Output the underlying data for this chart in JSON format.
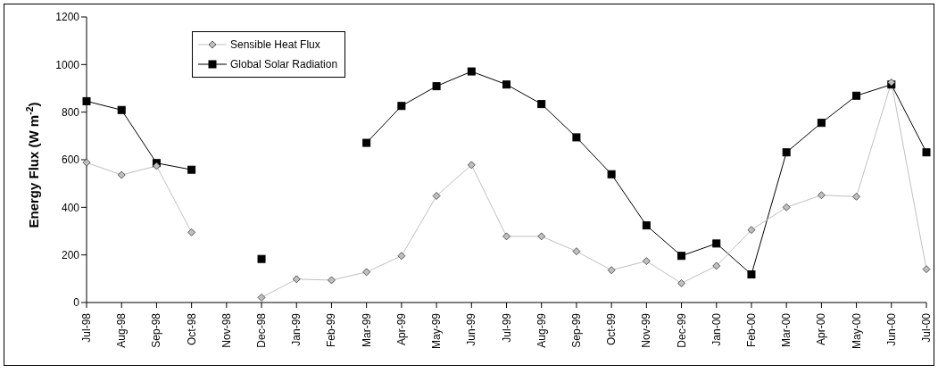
{
  "chart_data": {
    "type": "line",
    "ylabel": "Energy Flux (W m$^{-2}$)",
    "categories": [
      "Jul-98",
      "Aug-98",
      "Sep-98",
      "Oct-98",
      "Nov-98",
      "Dec-98",
      "Jan-99",
      "Feb-99",
      "Mar-99",
      "Apr-99",
      "May-99",
      "Jun-99",
      "Jul-99",
      "Aug-99",
      "Sep-99",
      "Oct-99",
      "Nov-99",
      "Dec-99",
      "Jan-00",
      "Feb-00",
      "Mar-00",
      "Apr-00",
      "May-00",
      "Jun-00",
      "Jul-00"
    ],
    "series": [
      {
        "name": "Sensible Heat Flux",
        "color": "#c0c0c0",
        "marker": "diamond",
        "values": [
          588,
          536,
          574,
          295,
          null,
          21,
          98,
          94,
          128,
          196,
          448,
          578,
          278,
          278,
          215,
          136,
          174,
          81,
          154,
          305,
          400,
          451,
          445,
          925,
          140
        ]
      },
      {
        "name": "Global Solar Radiation",
        "color": "#000000",
        "marker": "square",
        "values": [
          846,
          809,
          586,
          558,
          null,
          183,
          null,
          null,
          671,
          826,
          909,
          971,
          916,
          834,
          694,
          539,
          324,
          196,
          248,
          118,
          631,
          755,
          869,
          916,
          631
        ]
      }
    ],
    "ylim": [
      0,
      1200
    ],
    "yticks": [
      0,
      200,
      400,
      600,
      800,
      1000,
      1200
    ],
    "grid": false,
    "legend": "top left",
    "line_style": "solid"
  }
}
